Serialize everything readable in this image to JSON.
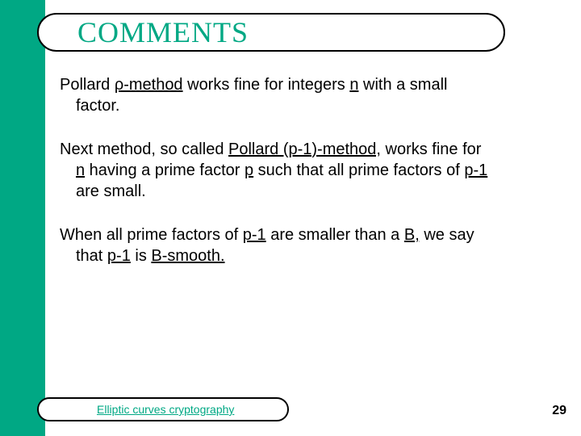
{
  "colors": {
    "accent": "#00a884",
    "text": "#000000",
    "background": "#ffffff",
    "border": "#000000"
  },
  "title": "COMMENTS",
  "paragraphs": {
    "p1": {
      "lead": "Pollard ",
      "method": "ρ-method",
      "mid": " works fine for integers ",
      "n": "n",
      "tail": " with a small",
      "line2": "factor."
    },
    "p2": {
      "lead": "Next method, so called ",
      "method": "Pollard (p-1)-method,",
      "mid": " works fine for",
      "line2a": "n",
      "line2b": " having a prime factor ",
      "line2c": "p",
      "line2d": " such that all prime factors of ",
      "line2e": "p-1",
      "line3": "are small."
    },
    "p3": {
      "lead": "When all prime factors of ",
      "pm1a": "p-1",
      "mid": " are smaller than a ",
      "B": "B,",
      "tail": " we say",
      "line2a": "that ",
      "line2b": "p-1",
      "line2c": " is ",
      "line2d": "B-smooth."
    }
  },
  "footer": "Elliptic curves cryptography",
  "page_number": "29"
}
